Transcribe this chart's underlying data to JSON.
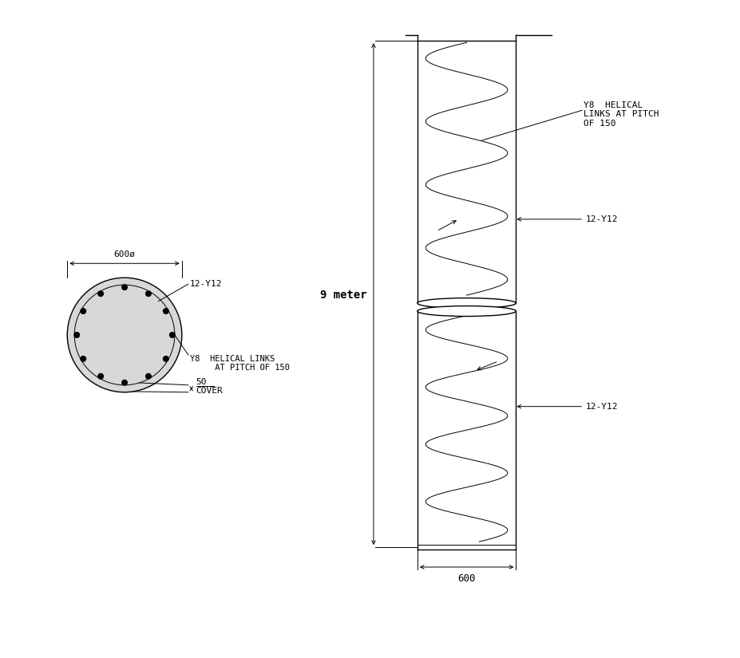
{
  "bg_color": "#ffffff",
  "line_color": "#000000",
  "light_gray": "#d8d8d8",
  "diameter_label": "600ø",
  "bar_label": "12-Y12",
  "link_label_cross": "Y8  HELICAL LINKS\n     AT PITCH OF 150",
  "cover_label_num": "50",
  "cover_label_text": "COVER",
  "nine_meter_label": "9 meter",
  "width_label": "600",
  "link_label_side": "Y8  HELICAL\nLINKS AT PITCH\nOF 150",
  "bar_label_side": "12-Y12"
}
